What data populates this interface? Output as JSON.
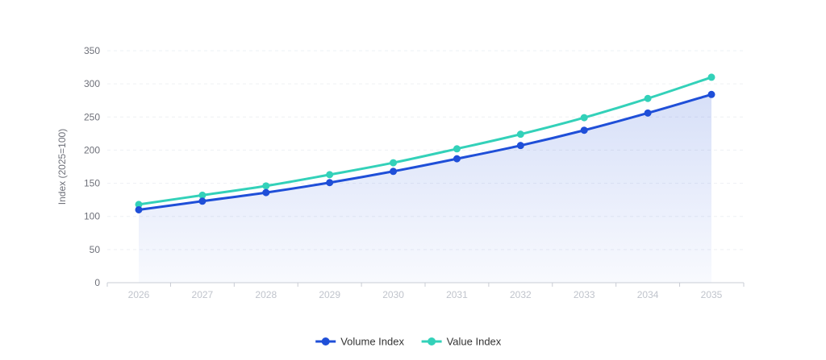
{
  "chart_data": {
    "type": "line",
    "categories": [
      "2026",
      "2027",
      "2028",
      "2029",
      "2030",
      "2031",
      "2032",
      "2033",
      "2034",
      "2035"
    ],
    "series": [
      {
        "name": "Volume Index",
        "values": [
          110,
          123,
          136,
          151,
          168,
          187,
          207,
          230,
          256,
          284
        ],
        "color": "#1f4fd8",
        "area_fill": true
      },
      {
        "name": "Value Index",
        "values": [
          118,
          132,
          146,
          163,
          181,
          202,
          224,
          249,
          278,
          310
        ],
        "color": "#33d1b9",
        "area_fill": false
      }
    ],
    "title": "",
    "xlabel": "",
    "ylabel": "Index (2025=100)",
    "ylim": [
      0,
      350
    ],
    "yticks": [
      0,
      50,
      100,
      150,
      200,
      250,
      300,
      350
    ],
    "grid": true,
    "legend_position": "bottom-center"
  }
}
